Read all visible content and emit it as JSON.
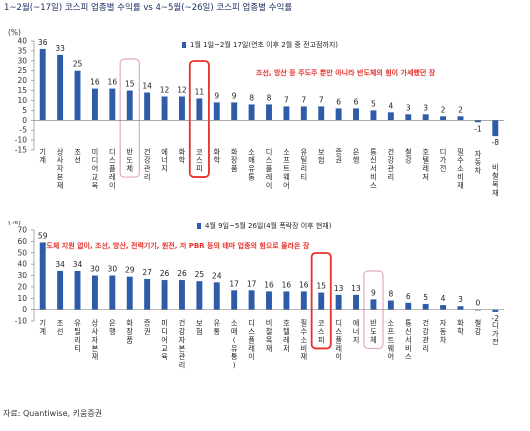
{
  "title": "1~2월(~17일) 코스피 업종별 수익률 vs 4~5월(~26일) 코스피 업종별 수익률",
  "source": "자료: Quantiwise, 키움증권",
  "colors": {
    "bar": "#2f5ca8",
    "highlight_red": "#e8302a",
    "highlight_pink": "#e7a6c6",
    "annotation": "#e8302a",
    "title": "#1f2e63"
  },
  "chart_data": [
    {
      "type": "bar",
      "unit_label": "(%)",
      "legend": "1월 1일~2월 17일(연초 이후 2월 중 전고점까지)",
      "annotation": "조선, 방산 등 주도주 뿐만 아니라 반도체의 힘이 가세했던 장",
      "ylim": [
        -15,
        40
      ],
      "yticks": [
        40,
        35,
        30,
        25,
        20,
        15,
        10,
        5,
        0,
        -5,
        -10,
        -15
      ],
      "categories": [
        "기계",
        "상사자본재",
        "조선",
        "미디어교육",
        "디스플레이",
        "반도체",
        "건강관리",
        "에너지",
        "화학",
        "코스피",
        "화학",
        "화장품",
        "소매유통",
        "디스플레이",
        "소프트웨어",
        "유틸리티",
        "보험",
        "증권",
        "은행",
        "통신서비스",
        "건강관리",
        "철강",
        "호텔레저",
        "디가전",
        "필수소비재",
        "자동차",
        "비철목재"
      ],
      "values": [
        36,
        33,
        25,
        16,
        16,
        15,
        14,
        12,
        12,
        11,
        9,
        9,
        8,
        8,
        7,
        7,
        7,
        6,
        6,
        5,
        4,
        3,
        3,
        2,
        2,
        -1,
        -8
      ],
      "highlight_red": [
        "코스피"
      ],
      "highlight_pink": [
        "반도체"
      ]
    },
    {
      "type": "bar",
      "unit_label": "(%)",
      "legend": "4월 9일~5월 26일(4월 폭락장 이후 현재)",
      "annotation": "반도체 지원 없이, 조선, 방산, 전력기기, 원전, 저 PBR 등의 테마 업종의 힘으로 올라온 장",
      "ylim": [
        -10,
        70
      ],
      "yticks": [
        70,
        60,
        50,
        40,
        30,
        20,
        10,
        0,
        -10
      ],
      "categories": [
        "기계",
        "조선",
        "유틸리티",
        "상사자본재",
        "은행",
        "화장품",
        "증권",
        "미디어교육",
        "건강자본관리",
        "보험",
        "유통",
        "소매(유통)",
        "디스플레이",
        "비철목재",
        "호텔레저",
        "필수소비재",
        "코스피",
        "디스플레이",
        "에너지",
        "반도체",
        "소프트웨어",
        "통신서비스",
        "건강관리",
        "자동차",
        "화학",
        "철강",
        "디가전"
      ],
      "values": [
        59,
        34,
        34,
        30,
        30,
        29,
        27,
        26,
        26,
        25,
        24,
        17,
        17,
        16,
        16,
        16,
        15,
        13,
        13,
        9,
        8,
        6,
        5,
        4,
        3,
        0,
        -2
      ],
      "highlight_red": [
        "코스피"
      ],
      "highlight_pink": [
        "반도체"
      ]
    }
  ]
}
